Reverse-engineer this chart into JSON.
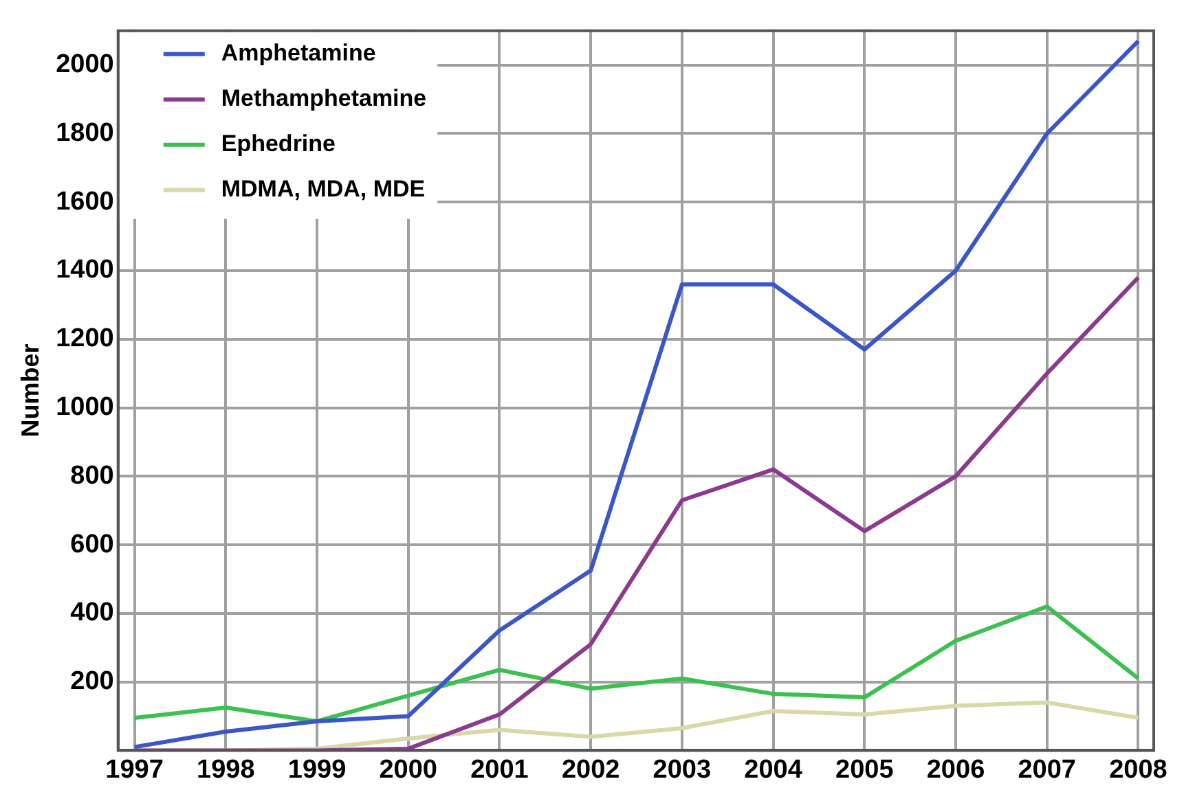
{
  "chart_data": {
    "type": "line",
    "ylabel": "Number",
    "x": [
      1997,
      1998,
      1999,
      2000,
      2001,
      2002,
      2003,
      2004,
      2005,
      2006,
      2007,
      2008
    ],
    "xlim": [
      1996.82,
      2008.17
    ],
    "xticks": [
      1997,
      1998,
      1999,
      2000,
      2001,
      2002,
      2003,
      2004,
      2005,
      2006,
      2007,
      2008
    ],
    "ylim": [
      0,
      2100
    ],
    "yticks": [
      200,
      400,
      600,
      800,
      1000,
      1200,
      1400,
      1600,
      1800,
      2000
    ],
    "grid": true,
    "legend": "top left",
    "marker": "none",
    "line_style": "solid",
    "series": [
      {
        "name": "Amphetamine",
        "color": "#3a56c8",
        "values": [
          10,
          55,
          85,
          100,
          350,
          525,
          1360,
          1360,
          1170,
          1400,
          1800,
          2070
        ]
      },
      {
        "name": "Methamphetamine",
        "color": "#8b3a8e",
        "values": [
          0,
          0,
          0,
          5,
          105,
          310,
          730,
          820,
          640,
          800,
          1100,
          1380
        ]
      },
      {
        "name": "Ephedrine",
        "color": "#3cc04f",
        "values": [
          95,
          125,
          85,
          160,
          235,
          180,
          210,
          165,
          155,
          320,
          420,
          210
        ]
      },
      {
        "name": "MDMA, MDA, MDE",
        "color": "#d8d8a8",
        "values": [
          0,
          0,
          5,
          35,
          60,
          40,
          65,
          115,
          105,
          130,
          140,
          95
        ]
      }
    ]
  }
}
